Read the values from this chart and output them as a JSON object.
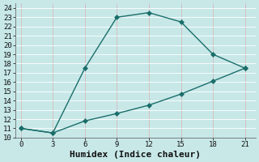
{
  "xlabel": "Humidex (Indice chaleur)",
  "bg_color": "#c8e8e8",
  "grid_color": "#aacccc",
  "line_color": "#1a6e6a",
  "xlim": [
    -0.5,
    22
  ],
  "ylim": [
    10,
    24.5
  ],
  "xticks": [
    0,
    3,
    6,
    9,
    12,
    15,
    18,
    21
  ],
  "yticks": [
    10,
    11,
    12,
    13,
    14,
    15,
    16,
    17,
    18,
    19,
    20,
    21,
    22,
    23,
    24
  ],
  "line1_x": [
    0,
    3,
    6,
    9,
    12,
    15,
    18,
    21
  ],
  "line1_y": [
    11,
    10.5,
    17.5,
    23,
    23.5,
    22.5,
    19,
    17.5
  ],
  "line2_x": [
    0,
    3,
    6,
    9,
    12,
    15,
    18,
    21
  ],
  "line2_y": [
    11,
    10.5,
    11.8,
    12.6,
    13.5,
    14.7,
    16.1,
    17.5
  ],
  "marker": "D",
  "marker_size": 3,
  "line_width": 1.0,
  "xlabel_fontsize": 8,
  "tick_fontsize": 6.5
}
